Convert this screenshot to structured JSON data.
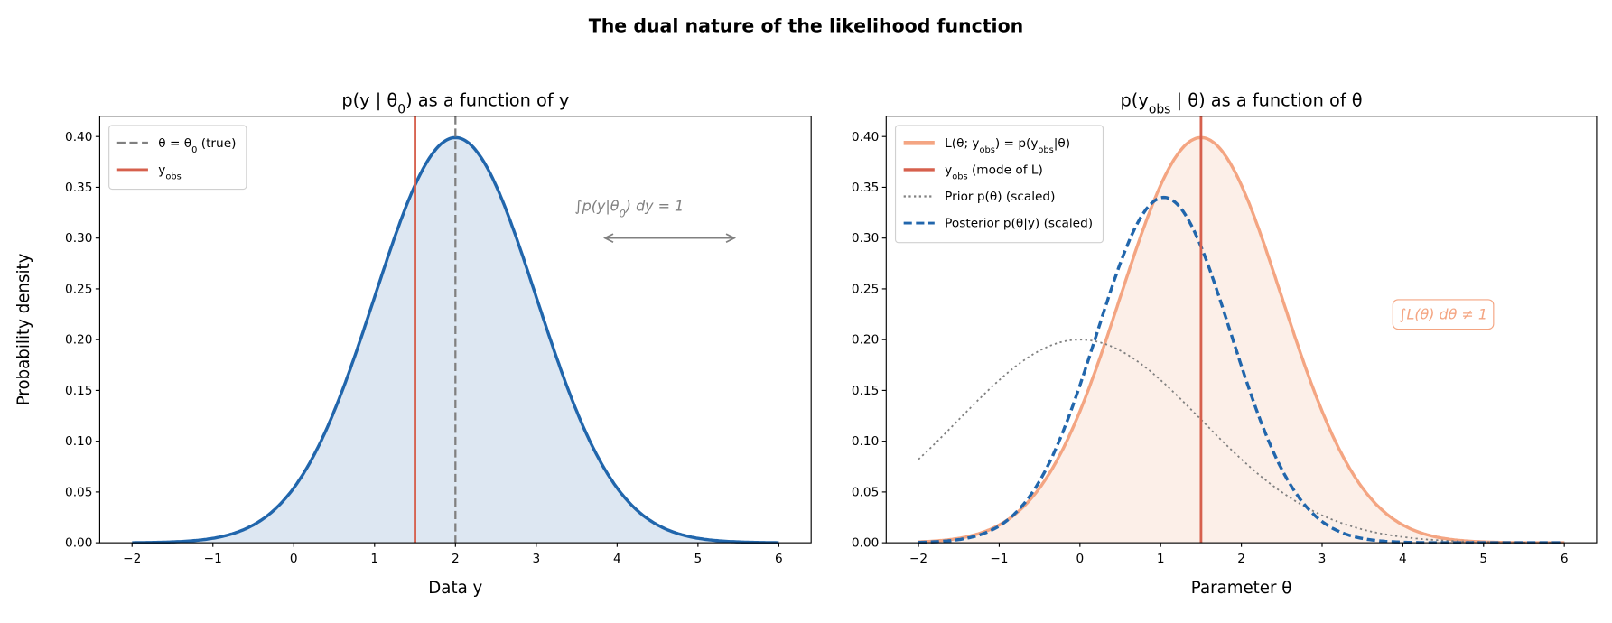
{
  "suptitle": "The dual nature of the likelihood function",
  "chart_data": [
    {
      "type": "line",
      "title": "p(y | θ_{0}) as a function of y",
      "xlabel": "Data y",
      "ylabel": "Probability density",
      "xlim": [
        -2.4,
        6.4
      ],
      "ylim": [
        0,
        0.42
      ],
      "xticks": [
        "−2",
        "−1",
        "0",
        "1",
        "2",
        "3",
        "4",
        "5",
        "6"
      ],
      "yticks": [
        "0.00",
        "0.05",
        "0.10",
        "0.15",
        "0.20",
        "0.25",
        "0.30",
        "0.35",
        "0.40"
      ],
      "series": [
        {
          "kind": "normal-pdf",
          "mean": 2,
          "sd": 1,
          "x_range": [
            -2,
            6
          ],
          "color": "#2166ac",
          "fill": "#dde7f2"
        }
      ],
      "vlines": [
        {
          "x": 2,
          "color": "#808080",
          "style": "dashed",
          "legend": "θ = θ_{0} (true)"
        },
        {
          "x": 1.5,
          "color": "#d6604d",
          "style": "solid",
          "legend": "y_{obs}"
        }
      ],
      "annotations": [
        {
          "text": "∫p(y|θ_{0}) dy = 1",
          "x": 4.15,
          "y": 0.332,
          "color": "#808080"
        }
      ],
      "arrow": {
        "x_from": 3.85,
        "x_to": 5.45,
        "y": 0.3,
        "style": "double-headed",
        "color": "#808080"
      },
      "legend_position": "upper-left",
      "grid": false
    },
    {
      "type": "line",
      "title": "p(y_{obs} | θ) as a function of θ",
      "xlabel": "Parameter θ",
      "ylabel": "",
      "xlim": [
        -2.4,
        6.4
      ],
      "ylim": [
        0,
        0.42
      ],
      "xticks": [
        "−2",
        "−1",
        "0",
        "1",
        "2",
        "3",
        "4",
        "5",
        "6"
      ],
      "yticks": [
        "0.00",
        "0.05",
        "0.10",
        "0.15",
        "0.20",
        "0.25",
        "0.30",
        "0.35",
        "0.40"
      ],
      "series": [
        {
          "name": "L(θ; y_{obs}) = p(y_{obs}|θ)",
          "kind": "normal-pdf",
          "mean": 1.5,
          "sd": 1,
          "peak": 0.399,
          "x_range": [
            -2,
            6
          ],
          "color": "#f4a582",
          "style": "solid",
          "fill": "#fcefe8"
        },
        {
          "name": "Prior p(θ) (scaled)",
          "kind": "normal-shape",
          "mean": 0,
          "sd": 1.5,
          "peak": 0.2,
          "x_range": [
            -2,
            6
          ],
          "color": "#808080",
          "style": "dotted"
        },
        {
          "name": "Posterior p(θ|y) (scaled)",
          "kind": "normal-shape",
          "mean": 1.04,
          "sd": 0.83,
          "peak": 0.34,
          "x_range": [
            -2,
            6
          ],
          "color": "#2166ac",
          "style": "dashed"
        }
      ],
      "vlines": [
        {
          "x": 1.5,
          "color": "#d6604d",
          "style": "solid",
          "legend": "y_{obs} (mode of L)"
        }
      ],
      "annotations": [
        {
          "text": "∫L(θ) dθ ≠ 1",
          "x": 4.5,
          "y": 0.225,
          "color": "#f4a582",
          "boxed": true
        }
      ],
      "legend_position": "upper-left",
      "grid": false
    }
  ]
}
